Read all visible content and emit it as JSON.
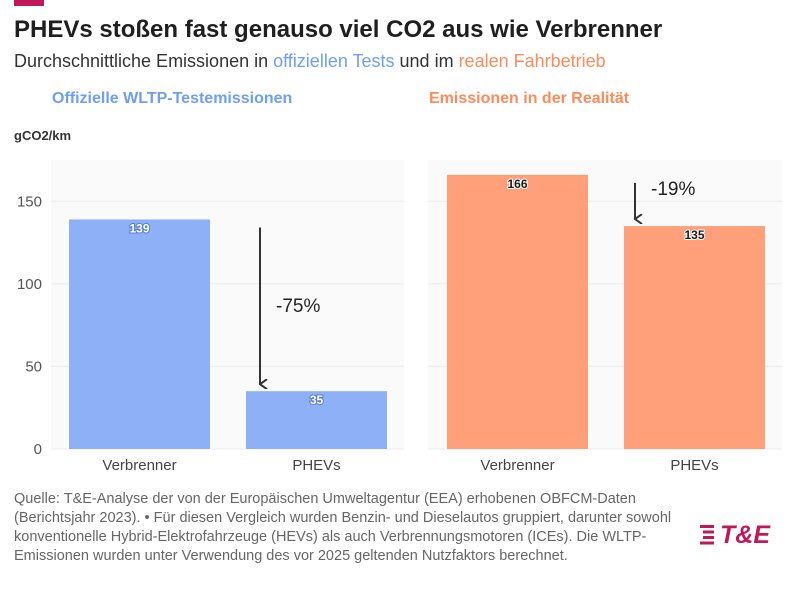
{
  "header": {
    "title": "PHEVs stoßen fast genauso viel CO2 aus wie Verbrenner",
    "subtitle_prefix": "Durchschnittliche Emissionen in ",
    "subtitle_highlight_1": "offiziellen Tests",
    "subtitle_middle": " und im ",
    "subtitle_highlight_2": "realen Fahrbetrieb"
  },
  "colors": {
    "blue": "#8db0f6",
    "blue_text": "#6f9ef5",
    "orange": "#ffa07a",
    "orange_text": "#ff8a5b",
    "accent": "#c2185b",
    "arrow": "#333333",
    "grid": "#ececec"
  },
  "chart_data": [
    {
      "type": "bar",
      "title": "Offizielle WLTP-Testemissionen",
      "ylabel": "gCO2/km",
      "categories": [
        "Verbrenner",
        "PHEVs"
      ],
      "values": [
        139,
        35
      ],
      "value_labels": [
        "139",
        "35"
      ],
      "ylim": [
        0,
        175
      ],
      "yticks": [
        0,
        50,
        100,
        150
      ],
      "grid": true,
      "color": "#8db0f6",
      "annotation": {
        "text": "-75%",
        "from": 139,
        "to": 35
      }
    },
    {
      "type": "bar",
      "title": "Emissionen in der Realität",
      "categories": [
        "Verbrenner",
        "PHEVs"
      ],
      "values": [
        166,
        135
      ],
      "value_labels": [
        "166",
        "135"
      ],
      "ylim": [
        0,
        175
      ],
      "grid": true,
      "color": "#ffa07a",
      "annotation": {
        "text": "-19%",
        "from": 166,
        "to": 135
      }
    }
  ],
  "footnote": "Quelle: T&E-Analyse der von der Europäischen Umweltagentur (EEA) erhobenen OBFCM-Daten (Berichtsjahr 2023). • Für diesen Vergleich wurden Benzin- und Dieselautos gruppiert, darunter sowohl konventionelle Hybrid-Elektrofahrzeuge (HEVs) als auch Verbrennungsmotoren (ICEs). Die WLTP-Emissionen wurden unter Verwendung des vor 2025 geltenden Nutzfaktors berechnet.",
  "logo": {
    "text": "T&E",
    "icon": "striped-e-icon"
  }
}
